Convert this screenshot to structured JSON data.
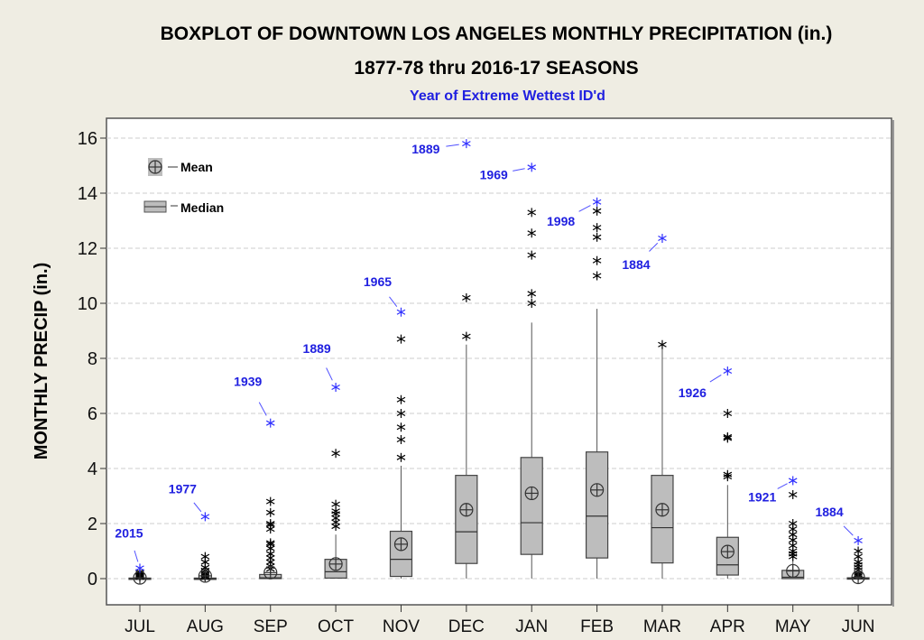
{
  "chart_data": {
    "type": "boxplot",
    "title": "BOXPLOT OF DOWNTOWN LOS ANGELES MONTHLY PRECIPITATION (in.)",
    "subtitle": "1877-78 thru 2016-17 SEASONS",
    "annotation_note": "Year of Extreme Wettest ID'd",
    "xlabel": "",
    "ylabel": "MONTHLY PRECIP (in.)",
    "ylim": [
      -1,
      16.6
    ],
    "yticks": [
      0,
      2,
      4,
      6,
      8,
      10,
      12,
      14,
      16
    ],
    "grid": true,
    "legend": {
      "position": "top-left",
      "items": [
        "Mean",
        "Median"
      ]
    },
    "colors": {
      "box": "#bdbdbd",
      "outlier": "#000000",
      "extreme": "#3030ff",
      "label": "#2020e0"
    },
    "categories": [
      "JUL",
      "AUG",
      "SEP",
      "OCT",
      "NOV",
      "DEC",
      "JAN",
      "FEB",
      "MAR",
      "APR",
      "MAY",
      "JUN"
    ],
    "boxes": [
      {
        "q1": 0,
        "median": 0,
        "q3": 0.02,
        "mean": 0.03,
        "whisker_low": 0,
        "whisker_high": 0.05,
        "outliers": [
          0.05,
          0.08,
          0.1,
          0.12,
          0.15,
          0.2,
          0.25
        ],
        "max": 0.38,
        "max_year": "2015"
      },
      {
        "q1": 0,
        "median": 0,
        "q3": 0.02,
        "mean": 0.1,
        "whisker_low": 0,
        "whisker_high": 0.05,
        "outliers": [
          0.05,
          0.1,
          0.15,
          0.2,
          0.3,
          0.4,
          0.6,
          0.8
        ],
        "max": 2.25,
        "max_year": "1977"
      },
      {
        "q1": 0,
        "median": 0.03,
        "q3": 0.15,
        "mean": 0.22,
        "whisker_low": 0,
        "whisker_high": 0.3,
        "outliers": [
          0.35,
          0.45,
          0.6,
          0.75,
          0.9,
          1.1,
          1.25,
          1.3,
          1.8,
          1.95,
          2.0,
          2.4,
          2.8
        ],
        "max": 5.65,
        "max_year": "1939"
      },
      {
        "q1": 0.02,
        "median": 0.25,
        "q3": 0.7,
        "mean": 0.53,
        "whisker_low": 0,
        "whisker_high": 1.6,
        "outliers": [
          1.9,
          2.05,
          2.2,
          2.35,
          2.45,
          2.7,
          4.55
        ],
        "max": 6.95,
        "max_year": "1889"
      },
      {
        "q1": 0.08,
        "median": 0.7,
        "q3": 1.72,
        "mean": 1.25,
        "whisker_low": 0,
        "whisker_high": 4.1,
        "outliers": [
          4.4,
          5.05,
          5.5,
          6.0,
          6.5,
          8.7
        ],
        "max": 9.68,
        "max_year": "1965"
      },
      {
        "q1": 0.55,
        "median": 1.7,
        "q3": 3.75,
        "mean": 2.5,
        "whisker_low": 0,
        "whisker_high": 8.5,
        "outliers": [
          8.8,
          10.2
        ],
        "max": 15.8,
        "max_year": "1889"
      },
      {
        "q1": 0.88,
        "median": 2.03,
        "q3": 4.4,
        "mean": 3.1,
        "whisker_low": 0,
        "whisker_high": 9.3,
        "outliers": [
          10.0,
          10.35,
          11.75,
          12.55,
          13.3
        ],
        "max": 14.94,
        "max_year": "1969"
      },
      {
        "q1": 0.75,
        "median": 2.27,
        "q3": 4.6,
        "mean": 3.22,
        "whisker_low": 0,
        "whisker_high": 9.8,
        "outliers": [
          11.0,
          11.55,
          12.4,
          12.75,
          13.35
        ],
        "max": 13.68,
        "max_year": "1998"
      },
      {
        "q1": 0.57,
        "median": 1.85,
        "q3": 3.75,
        "mean": 2.5,
        "whisker_low": 0,
        "whisker_high": 8.4,
        "outliers": [
          8.5
        ],
        "max": 12.36,
        "max_year": "1884"
      },
      {
        "q1": 0.13,
        "median": 0.5,
        "q3": 1.5,
        "mean": 0.98,
        "whisker_low": 0,
        "whisker_high": 3.4,
        "outliers": [
          3.7,
          3.78,
          5.1,
          5.15,
          6.0
        ],
        "max": 7.54,
        "max_year": "1926"
      },
      {
        "q1": 0,
        "median": 0.05,
        "q3": 0.3,
        "mean": 0.28,
        "whisker_low": 0,
        "whisker_high": 0.7,
        "outliers": [
          0.8,
          0.9,
          1.0,
          1.2,
          1.4,
          1.6,
          1.8,
          2.0,
          3.05
        ],
        "max": 3.56,
        "max_year": "1921"
      },
      {
        "q1": 0,
        "median": 0,
        "q3": 0.03,
        "mean": 0.05,
        "whisker_low": 0,
        "whisker_high": 0.08,
        "outliers": [
          0.1,
          0.15,
          0.2,
          0.3,
          0.4,
          0.5,
          0.6,
          0.8,
          1.0
        ],
        "max": 1.38,
        "max_year": "1884"
      }
    ]
  }
}
